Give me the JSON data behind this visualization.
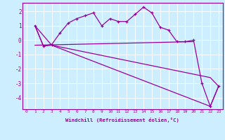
{
  "xlabel": "Windchill (Refroidissement éolien,°C)",
  "background_color": "#cceeff",
  "line_color": "#990099",
  "xlim": [
    -0.5,
    23.5
  ],
  "ylim": [
    -4.8,
    2.6
  ],
  "yticks": [
    -4,
    -3,
    -2,
    -1,
    0,
    1,
    2
  ],
  "xticks": [
    0,
    1,
    2,
    3,
    4,
    5,
    6,
    7,
    8,
    9,
    10,
    11,
    12,
    13,
    14,
    15,
    16,
    17,
    18,
    19,
    20,
    21,
    22,
    23
  ],
  "series1_x": [
    1,
    2,
    3,
    4,
    5,
    6,
    7,
    8,
    9,
    10,
    11,
    12,
    13,
    14,
    15,
    16,
    17,
    18,
    19,
    20,
    21,
    22,
    23
  ],
  "series1_y": [
    1.0,
    -0.4,
    -0.3,
    0.5,
    1.2,
    1.5,
    1.7,
    1.9,
    1.0,
    1.5,
    1.3,
    1.3,
    1.8,
    2.3,
    1.9,
    0.9,
    0.7,
    -0.1,
    -0.1,
    0.0,
    -3.0,
    -4.6,
    -3.2
  ],
  "series2_x": [
    1,
    2,
    3,
    22,
    23
  ],
  "series2_y": [
    1.0,
    -0.4,
    -0.35,
    -4.6,
    -3.2
  ],
  "series3_x": [
    1,
    3,
    22,
    23
  ],
  "series3_y": [
    1.0,
    -0.35,
    -2.6,
    -3.2
  ],
  "series4_x": [
    1,
    20
  ],
  "series4_y": [
    -0.35,
    -0.1
  ],
  "figsize": [
    3.2,
    2.0
  ],
  "dpi": 100
}
